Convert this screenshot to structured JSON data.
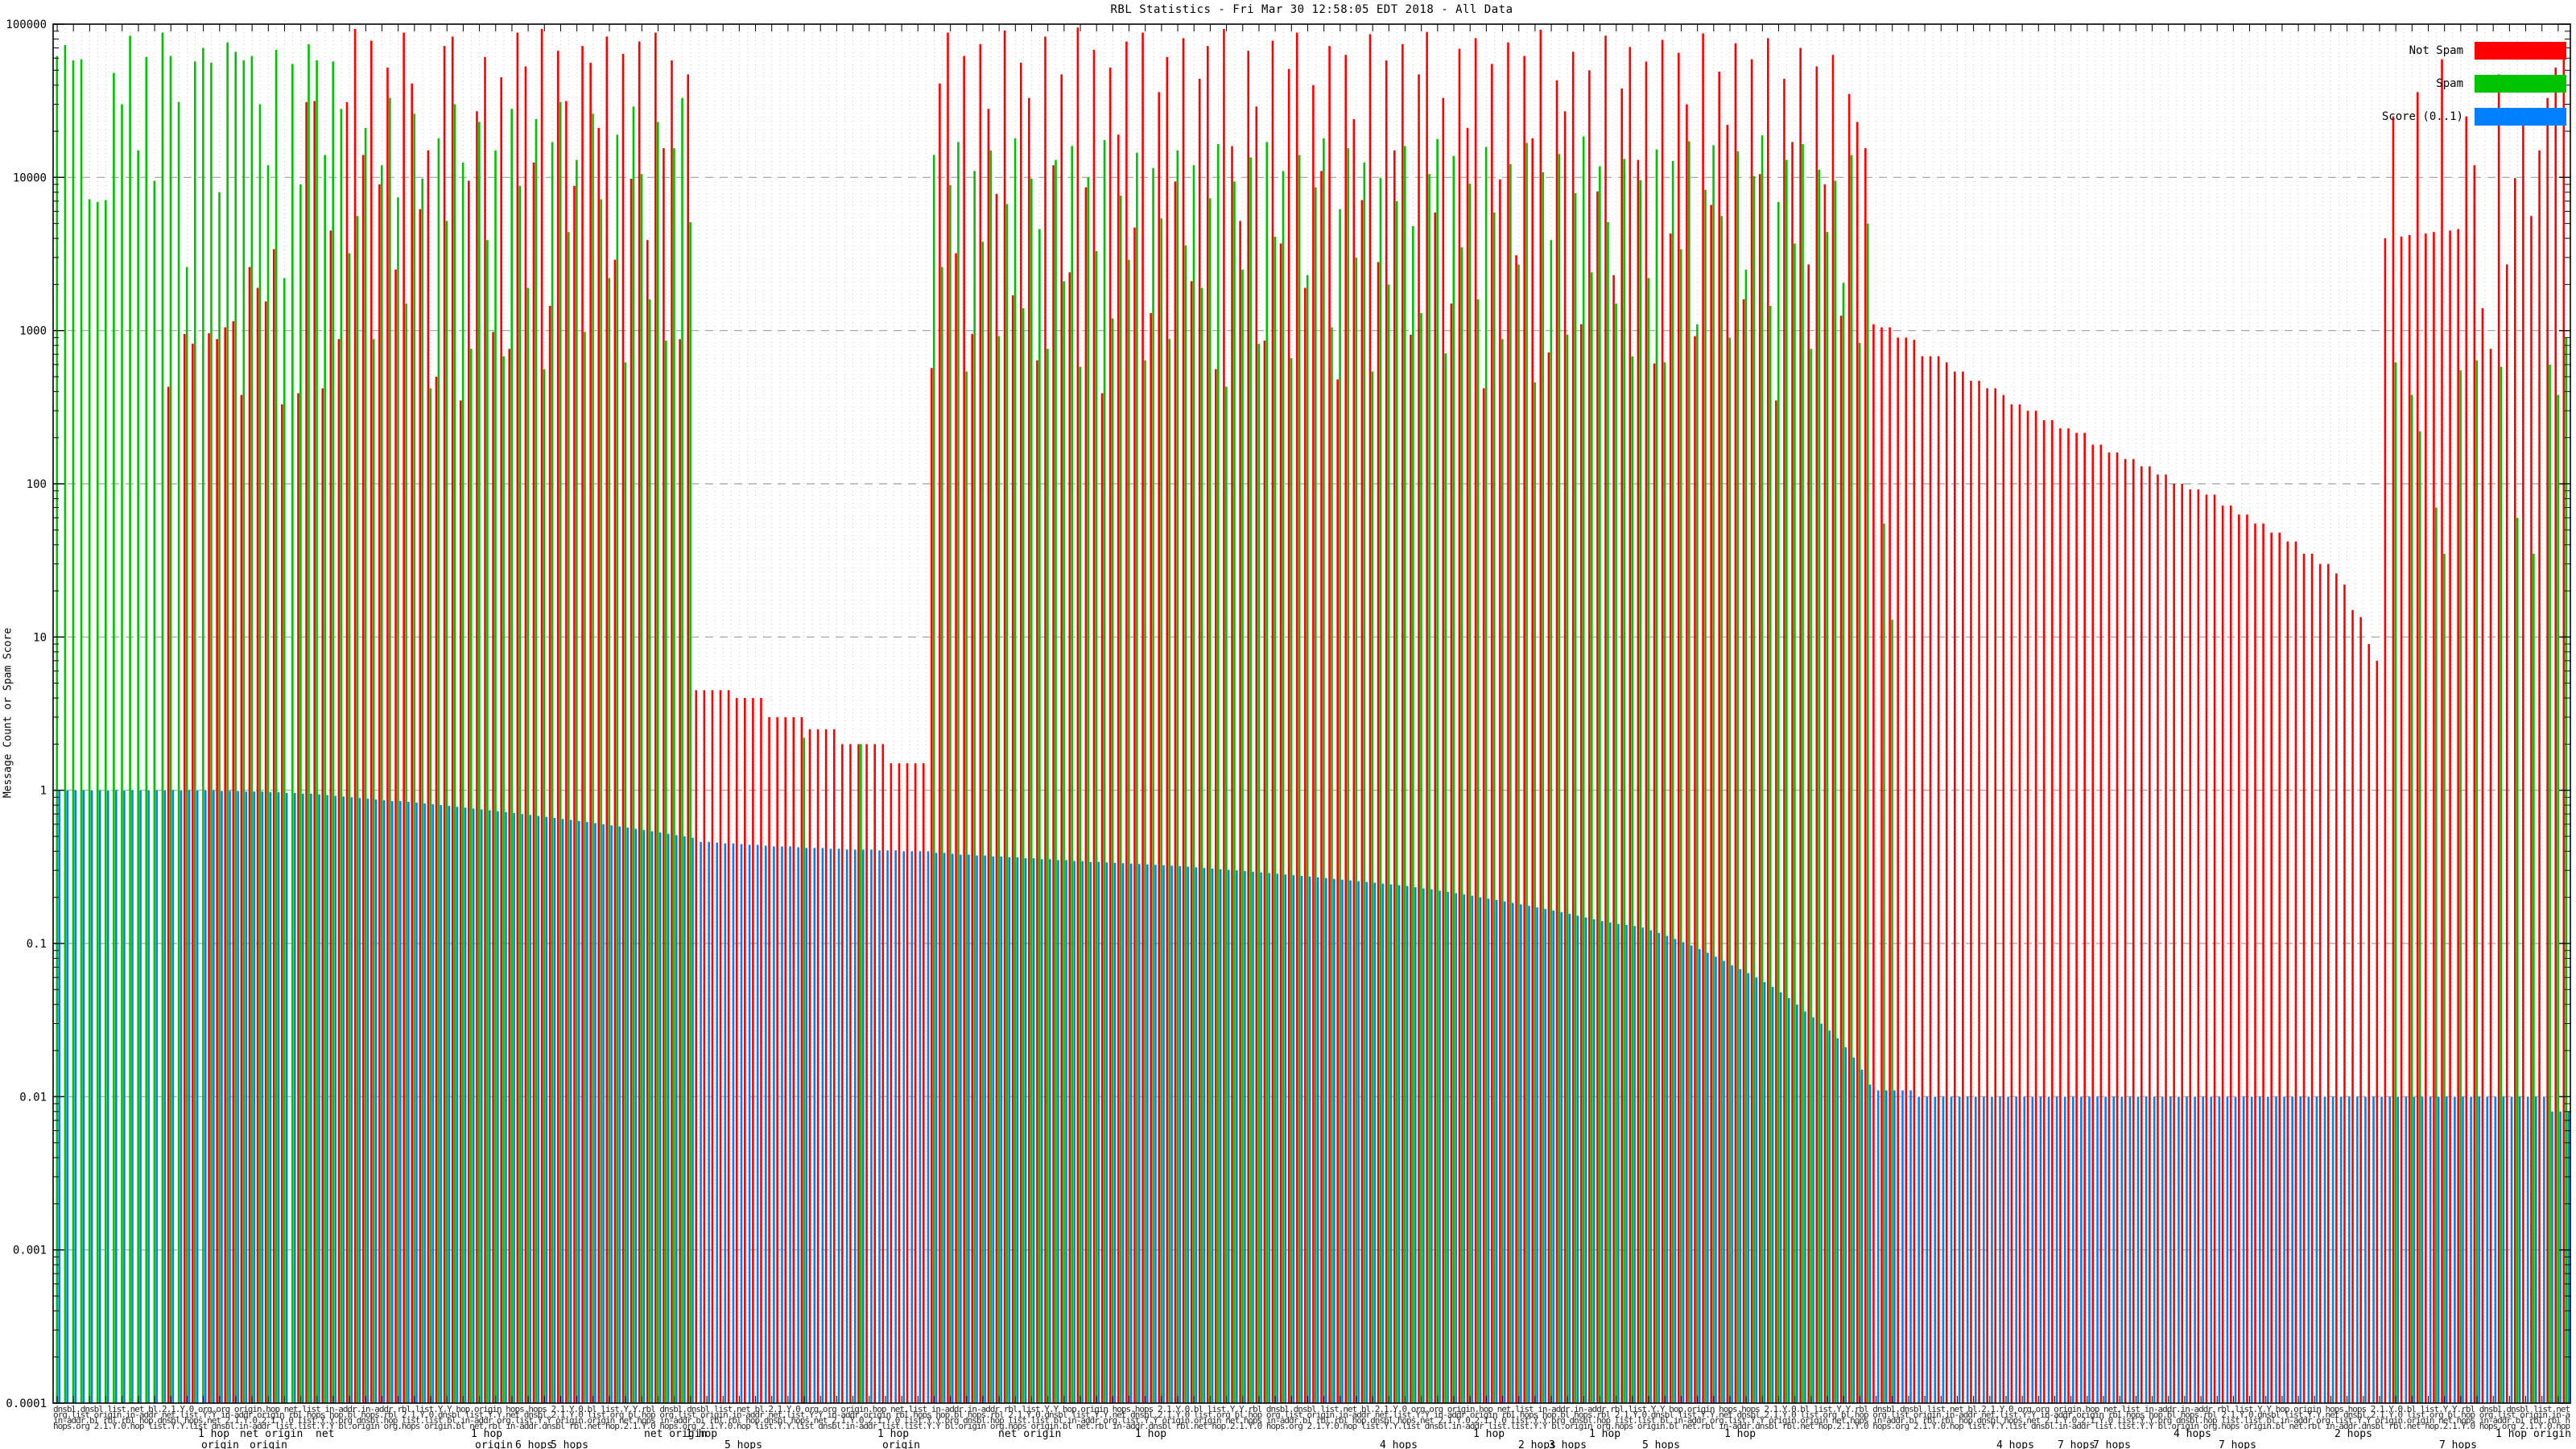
{
  "title": "RBL Statistics - Fri Mar 30 12:58:05 EDT 2018 - All Data",
  "chart_data": {
    "type": "bar",
    "title": "RBL Statistics - Fri Mar 30 12:58:05 EDT 2018 - All Data",
    "xlabel": "",
    "ylabel": "Message Count or Spam Score",
    "y_scale": "log",
    "ylim": [
      0.0001,
      100000
    ],
    "ytick_labels": [
      "100000",
      "10000",
      "1000",
      "100",
      "10",
      "1",
      "0.1",
      "0.01",
      "0.001",
      "0.0001"
    ],
    "grid": true,
    "legend_position": "top-right",
    "legend": [
      {
        "name": "Not Spam",
        "color": "#ff0000"
      },
      {
        "name": "Spam",
        "color": "#00c400"
      },
      {
        "name": "Score (0..1)",
        "color": "#0080ff"
      }
    ],
    "xtick_labels_illegible": true,
    "xtick_smudge_words": [
      "dnsbl",
      "list",
      "bl",
      "org",
      "origin",
      "net",
      "in-addr",
      "rbl",
      "hop",
      "hops",
      "2.1.Y.0",
      "list.Y.Y"
    ],
    "xtick_fragments": [
      {
        "text": "1 hop",
        "x": 246,
        "row": 1
      },
      {
        "text": "origin",
        "x": 250,
        "row": 2
      },
      {
        "text": "net origin",
        "x": 298,
        "row": 1
      },
      {
        "text": "origin",
        "x": 310,
        "row": 2
      },
      {
        "text": "net",
        "x": 392,
        "row": 1
      },
      {
        "text": "1 hop",
        "x": 585,
        "row": 1
      },
      {
        "text": "origin",
        "x": 590,
        "row": 2
      },
      {
        "text": "6 hops",
        "x": 640,
        "row": 2
      },
      {
        "text": "5 hops",
        "x": 684,
        "row": 2
      },
      {
        "text": "net origin",
        "x": 800,
        "row": 1
      },
      {
        "text": "1 hop",
        "x": 852,
        "row": 1
      },
      {
        "text": "5 hops",
        "x": 900,
        "row": 2
      },
      {
        "text": "1 hop",
        "x": 1090,
        "row": 1
      },
      {
        "text": "origin",
        "x": 1096,
        "row": 2
      },
      {
        "text": "net origin",
        "x": 1240,
        "row": 1
      },
      {
        "text": "1 hop",
        "x": 1410,
        "row": 1
      },
      {
        "text": "4 hops",
        "x": 1714,
        "row": 2
      },
      {
        "text": "1 hop",
        "x": 1830,
        "row": 1
      },
      {
        "text": "2 hops",
        "x": 1886,
        "row": 2
      },
      {
        "text": "3 hops",
        "x": 1924,
        "row": 2
      },
      {
        "text": "1 hop",
        "x": 1974,
        "row": 1
      },
      {
        "text": "5 hops",
        "x": 2040,
        "row": 2
      },
      {
        "text": "1 hop",
        "x": 2142,
        "row": 1
      },
      {
        "text": "4 hops",
        "x": 2480,
        "row": 2
      },
      {
        "text": "7 hops",
        "x": 2556,
        "row": 2
      },
      {
        "text": "7 hops",
        "x": 2600,
        "row": 2
      },
      {
        "text": "4 hops",
        "x": 2700,
        "row": 1
      },
      {
        "text": "7 hops",
        "x": 2756,
        "row": 2
      },
      {
        "text": "2 hops",
        "x": 2900,
        "row": 1
      },
      {
        "text": "7 hops",
        "x": 3030,
        "row": 2
      },
      {
        "text": "1 hop origin",
        "x": 3100,
        "row": 1
      }
    ],
    "series": [
      {
        "name": "Not Spam",
        "color": "#ff0000",
        "values": [
          0,
          0,
          0,
          0,
          0,
          0,
          0,
          0,
          0,
          0,
          0,
          0,
          0,
          0,
          430,
          0,
          950,
          820,
          0,
          960,
          880,
          1050,
          1150,
          380,
          2600,
          1900,
          1550,
          3400,
          330,
          0,
          390,
          31000,
          31500,
          420,
          4500,
          880,
          31000,
          93000,
          14000,
          78000,
          9000,
          52000,
          2500,
          88000,
          41000,
          6200,
          15000,
          500,
          72000,
          83000,
          350,
          9500,
          27000,
          61000,
          980,
          45000,
          760,
          88000,
          53000,
          12500,
          93000,
          1450,
          67000,
          31500,
          8800,
          72000,
          56000,
          21000,
          83000,
          2900,
          64000,
          9800,
          77000,
          3900,
          88000,
          15500,
          58000,
          880,
          47000,
          4.5,
          4.5,
          4.5,
          4.5,
          4.5,
          4,
          4,
          4,
          4,
          3,
          3,
          3,
          3,
          3,
          2.5,
          2.5,
          2.5,
          2.5,
          2,
          2,
          2,
          2,
          2,
          2,
          1.5,
          1.5,
          1.5,
          1.5,
          1.5,
          570,
          41000,
          88000,
          3200,
          62000,
          950,
          74000,
          28000,
          7800,
          91000,
          1700,
          56000,
          33000,
          640,
          83000,
          12000,
          47000,
          2400,
          95000,
          8600,
          68000,
          390,
          52000,
          19000,
          77000,
          4700,
          88000,
          1300,
          36000,
          61000,
          9400,
          81000,
          2100,
          44000,
          72000,
          560,
          93000,
          16000,
          5200,
          67000,
          29000,
          860,
          78000,
          3700,
          51000,
          88000,
          1900,
          40000,
          11000,
          72000,
          480,
          63000,
          24000,
          7100,
          86000,
          2800,
          58000,
          15000,
          74000,
          940,
          47000,
          89000,
          5900,
          33000,
          1500,
          69000,
          21000,
          81000,
          420,
          55000,
          9700,
          76000,
          3100,
          62000,
          18000,
          92000,
          720,
          43000,
          27000,
          66000,
          1100,
          50000,
          8100,
          84000,
          2300,
          38000,
          71000,
          13000,
          57000,
          610,
          79000,
          4300,
          65000,
          30000,
          920,
          87000,
          6600,
          49000,
          22000,
          75000,
          1600,
          59000,
          10500,
          81000,
          350,
          44000,
          17000,
          70000,
          2700,
          53000,
          9000,
          63000,
          1250,
          35000,
          23000,
          15500,
          1100,
          1050,
          1050,
          900,
          900,
          870,
          680,
          680,
          680,
          620,
          540,
          540,
          470,
          470,
          420,
          420,
          380,
          330,
          330,
          300,
          300,
          260,
          260,
          230,
          230,
          215,
          215,
          180,
          180,
          160,
          160,
          145,
          145,
          130,
          130,
          115,
          115,
          100,
          100,
          92,
          92,
          85,
          85,
          72,
          72,
          63,
          63,
          55,
          55,
          48,
          48,
          42,
          42,
          35,
          35,
          30,
          30,
          26,
          22,
          15,
          13.5,
          9,
          7,
          4000,
          25000,
          4100,
          4200,
          36000,
          4300,
          4400,
          59000,
          4500,
          4600,
          25000,
          12000,
          1400,
          760,
          47000,
          2700,
          9900,
          28000,
          5600,
          15000,
          33000,
          52000,
          70000
        ]
      },
      {
        "name": "Spam",
        "color": "#00c400",
        "values": [
          62000,
          73000,
          58000,
          59000,
          7200,
          6900,
          7100,
          48000,
          30000,
          84000,
          15000,
          61000,
          9500,
          88000,
          62000,
          31000,
          2600,
          57000,
          70000,
          56000,
          8000,
          76000,
          66000,
          58000,
          62000,
          30000,
          12000,
          68000,
          2200,
          55000,
          9000,
          74000,
          58000,
          14000,
          57000,
          28000,
          3200,
          5600,
          21000,
          880,
          12000,
          33000,
          7400,
          1500,
          26000,
          9800,
          420,
          18000,
          5200,
          30000,
          12500,
          760,
          23000,
          3900,
          15000,
          680,
          28000,
          8800,
          1900,
          24000,
          560,
          17000,
          31000,
          4400,
          13000,
          980,
          26000,
          7200,
          2200,
          19000,
          620,
          29000,
          10500,
          1600,
          23000,
          860,
          15500,
          33000,
          5100,
          0,
          0,
          0,
          0,
          0,
          0,
          0,
          0,
          0,
          0,
          0,
          0,
          0,
          2.2,
          0,
          0,
          0,
          0,
          0,
          0,
          2,
          0,
          0,
          0,
          0,
          0,
          0,
          0,
          0,
          14000,
          2600,
          8900,
          17000,
          540,
          11000,
          3800,
          15000,
          920,
          6700,
          18000,
          1400,
          9800,
          4600,
          760,
          13000,
          2100,
          16000,
          580,
          10000,
          3300,
          17500,
          1200,
          7600,
          2900,
          14500,
          640,
          11500,
          5400,
          880,
          15000,
          3600,
          12000,
          1900,
          7300,
          16500,
          430,
          9400,
          2500,
          13500,
          820,
          17000,
          4100,
          11000,
          660,
          14000,
          2300,
          8600,
          18000,
          1050,
          6200,
          15500,
          3000,
          12500,
          540,
          9900,
          2000,
          7000,
          16000,
          4800,
          1300,
          10500,
          17800,
          710,
          13800,
          3500,
          9100,
          1600,
          15800,
          5900,
          880,
          12200,
          2700,
          16800,
          460,
          10800,
          3900,
          14200,
          940,
          7900,
          18500,
          2400,
          11800,
          5100,
          1500,
          13200,
          680,
          9600,
          2200,
          15200,
          620,
          12800,
          3400,
          17200,
          1100,
          8300,
          16200,
          5600,
          900,
          14800,
          2500,
          10200,
          18800,
          1450,
          6900,
          13000,
          3700,
          16500,
          760,
          11200,
          4400,
          9500,
          2050,
          14000,
          830,
          5000,
          0,
          55,
          13,
          0,
          0,
          0,
          0,
          0,
          0,
          0,
          0,
          0,
          0,
          0,
          0,
          0,
          0,
          0,
          0,
          0,
          0,
          0,
          0,
          0,
          0,
          0,
          0,
          0,
          0,
          0,
          0,
          0,
          0,
          0,
          0,
          0,
          0,
          0,
          0,
          0,
          0,
          0,
          0,
          0,
          0,
          0,
          0,
          0,
          0,
          0,
          0,
          0,
          0,
          0,
          0,
          0,
          0,
          0,
          0,
          0,
          0,
          0,
          0,
          0,
          620,
          0,
          380,
          220,
          0,
          70,
          35,
          0,
          550,
          0,
          640,
          0,
          0,
          580,
          0,
          60,
          0,
          35,
          0,
          600,
          380,
          900
        ]
      },
      {
        "name": "Score (0..1)",
        "color": "#0080ff",
        "values": [
          1,
          1,
          1,
          1,
          1,
          1,
          1,
          1,
          1,
          1,
          1,
          1,
          1,
          1,
          1,
          1,
          1,
          1,
          1,
          1,
          0.99,
          0.99,
          0.99,
          0.98,
          0.98,
          0.98,
          0.97,
          0.97,
          0.96,
          0.96,
          0.95,
          0.95,
          0.94,
          0.93,
          0.92,
          0.91,
          0.9,
          0.89,
          0.88,
          0.87,
          0.86,
          0.85,
          0.85,
          0.84,
          0.83,
          0.82,
          0.81,
          0.8,
          0.79,
          0.78,
          0.77,
          0.76,
          0.75,
          0.74,
          0.73,
          0.72,
          0.71,
          0.7,
          0.69,
          0.68,
          0.67,
          0.66,
          0.65,
          0.64,
          0.63,
          0.62,
          0.61,
          0.6,
          0.59,
          0.58,
          0.57,
          0.56,
          0.55,
          0.54,
          0.53,
          0.52,
          0.51,
          0.5,
          0.49,
          0.46,
          0.46,
          0.455,
          0.45,
          0.45,
          0.445,
          0.44,
          0.44,
          0.435,
          0.43,
          0.43,
          0.43,
          0.425,
          0.42,
          0.42,
          0.42,
          0.415,
          0.415,
          0.41,
          0.41,
          0.41,
          0.41,
          0.405,
          0.405,
          0.405,
          0.4,
          0.4,
          0.4,
          0.4,
          0.39,
          0.39,
          0.385,
          0.38,
          0.38,
          0.375,
          0.375,
          0.37,
          0.37,
          0.365,
          0.365,
          0.36,
          0.36,
          0.355,
          0.355,
          0.35,
          0.35,
          0.345,
          0.345,
          0.34,
          0.34,
          0.338,
          0.336,
          0.334,
          0.332,
          0.33,
          0.328,
          0.326,
          0.324,
          0.322,
          0.32,
          0.317,
          0.314,
          0.311,
          0.308,
          0.305,
          0.302,
          0.3,
          0.297,
          0.294,
          0.291,
          0.288,
          0.285,
          0.282,
          0.279,
          0.276,
          0.273,
          0.27,
          0.267,
          0.264,
          0.261,
          0.258,
          0.255,
          0.252,
          0.249,
          0.246,
          0.243,
          0.24,
          0.237,
          0.233,
          0.229,
          0.225,
          0.221,
          0.217,
          0.213,
          0.209,
          0.205,
          0.2,
          0.196,
          0.192,
          0.188,
          0.184,
          0.18,
          0.176,
          0.172,
          0.168,
          0.164,
          0.16,
          0.156,
          0.152,
          0.148,
          0.144,
          0.14,
          0.137,
          0.134,
          0.132,
          0.13,
          0.127,
          0.122,
          0.117,
          0.112,
          0.107,
          0.102,
          0.097,
          0.092,
          0.087,
          0.082,
          0.077,
          0.072,
          0.068,
          0.064,
          0.06,
          0.056,
          0.052,
          0.048,
          0.044,
          0.04,
          0.036,
          0.033,
          0.03,
          0.027,
          0.024,
          0.021,
          0.018,
          0.015,
          0.012,
          0.011,
          0.011,
          0.011,
          0.011,
          0.011,
          0.01,
          0.01,
          0.01,
          0.01,
          0.01,
          0.01,
          0.01,
          0.01,
          0.01,
          0.01,
          0.01,
          0.01,
          0.01,
          0.01,
          0.01,
          0.01,
          0.01,
          0.01,
          0.01,
          0.01,
          0.01,
          0.01,
          0.01,
          0.01,
          0.01,
          0.01,
          0.01,
          0.01,
          0.01,
          0.01,
          0.01,
          0.01,
          0.01,
          0.01,
          0.01,
          0.01,
          0.01,
          0.01,
          0.01,
          0.01,
          0.01,
          0.01,
          0.01,
          0.01,
          0.01,
          0.01,
          0.01,
          0.01,
          0.01,
          0.01,
          0.01,
          0.01,
          0.01,
          0.01,
          0.01,
          0.01,
          0.01,
          0.01,
          0.01,
          0.01,
          0.01,
          0.01,
          0.01,
          0.01,
          0.01,
          0.01,
          0.01,
          0.01,
          0.01,
          0.01,
          0.01,
          0.01,
          0.01,
          0.01,
          0.01,
          0.01,
          0.01,
          0.01,
          0.008,
          0.008,
          0.008
        ]
      }
    ]
  }
}
